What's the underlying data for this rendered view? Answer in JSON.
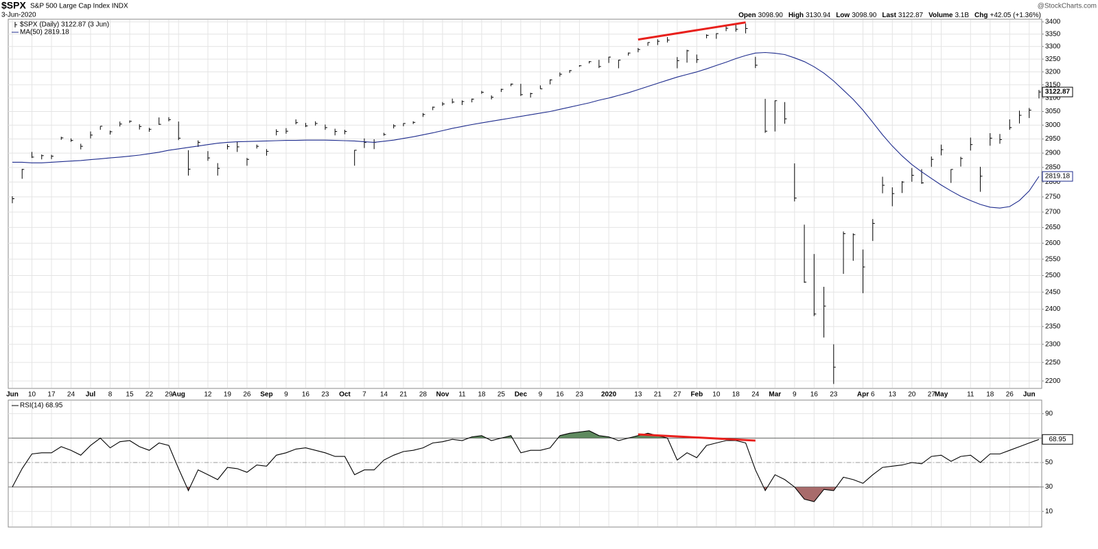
{
  "header": {
    "symbol": "$SPX",
    "name": "S&P 500 Large Cap Index INDX",
    "date": "3-Jun-2020",
    "source": "@StockCharts.com",
    "quote": [
      {
        "label": "Open",
        "value": "3098.90"
      },
      {
        "label": "High",
        "value": "3130.94"
      },
      {
        "label": "Low",
        "value": "3098.90"
      },
      {
        "label": "Last",
        "value": "3122.87"
      },
      {
        "label": "Volume",
        "value": "3.1B"
      },
      {
        "label": "Chg",
        "value": "+42.05 (+1.36%)"
      }
    ]
  },
  "chart_data": [
    {
      "type": "hlc",
      "log_scale": true,
      "grid": true,
      "last_value_tags": true,
      "ylim": [
        2182,
        3411
      ],
      "yticks": [
        2200,
        2250,
        2300,
        2350,
        2400,
        2450,
        2500,
        2550,
        2600,
        2650,
        2700,
        2750,
        2800,
        2850,
        2900,
        2950,
        3000,
        3050,
        3100,
        3150,
        3200,
        3250,
        3300,
        3350,
        3400
      ],
      "categories": [
        "Jun",
        null,
        "10",
        null,
        "17",
        null,
        "24",
        null,
        "Jul",
        null,
        "8",
        null,
        "15",
        null,
        "22",
        null,
        "29",
        "Aug",
        null,
        null,
        "12",
        null,
        "19",
        null,
        "26",
        null,
        "Sep",
        null,
        "9",
        null,
        "16",
        null,
        "23",
        null,
        "Oct",
        null,
        "7",
        null,
        "14",
        null,
        "21",
        null,
        "28",
        null,
        "Nov",
        null,
        "11",
        null,
        "18",
        null,
        "25",
        null,
        "Dec",
        null,
        "9",
        null,
        "16",
        null,
        "23",
        null,
        null,
        "2020",
        null,
        null,
        "13",
        null,
        "21",
        null,
        "27",
        null,
        "Feb",
        null,
        "10",
        null,
        "18",
        null,
        "24",
        null,
        "Mar",
        null,
        "9",
        null,
        "16",
        null,
        "23",
        null,
        null,
        "Apr",
        "6",
        null,
        "13",
        null,
        "20",
        null,
        "27",
        "May",
        null,
        null,
        "11",
        null,
        "18",
        null,
        "26",
        null,
        "Jun",
        null
      ],
      "series": [
        {
          "name": "$SPX (Daily) 3122.87 (3 Jun)",
          "color": "#000000",
          "high": [
            2752,
            2845,
            2904,
            2895,
            2894,
            2958,
            2952,
            2933,
            2977,
            2996,
            2980,
            3013,
            3017,
            3003,
            2990,
            3028,
            3029,
            3013,
            2910,
            2945,
            2907,
            2865,
            2931,
            2939,
            2883,
            2930,
            2914,
            2985,
            2989,
            3021,
            3008,
            3014,
            3002,
            2987,
            2983,
            2911,
            2952,
            2949,
            2972,
            3003,
            3007,
            3014,
            3044,
            3068,
            3085,
            3098,
            3091,
            3098,
            3127,
            3110,
            3135,
            3155,
            3154,
            3120,
            3148,
            3171,
            3198,
            3207,
            3226,
            3242,
            3247,
            3259,
            3247,
            3276,
            3294,
            3317,
            3329,
            3338,
            3258,
            3287,
            3268,
            3349,
            3353,
            3385,
            3394,
            3393,
            3259,
            3097,
            3091,
            3085,
            2864,
            2659,
            2566,
            2466,
            2300,
            2637,
            2631,
            2580,
            2677,
            2818,
            2782,
            2803,
            2848,
            2844,
            2888,
            2930,
            2844,
            2887,
            2955,
            2852,
            2971,
            2968,
            3021,
            3053,
            3063,
            3130.94
          ],
          "low": [
            2729,
            2811,
            2883,
            2878,
            2879,
            2947,
            2940,
            2913,
            2952,
            2983,
            2966,
            2995,
            3008,
            2984,
            2976,
            3001,
            3014,
            2946,
            2822,
            2922,
            2873,
            2822,
            2913,
            2904,
            2856,
            2916,
            2891,
            2963,
            2969,
            3003,
            2993,
            2998,
            2983,
            2963,
            2967,
            2856,
            2918,
            2914,
            2962,
            2988,
            2996,
            3004,
            3030,
            3055,
            3071,
            3080,
            3074,
            3084,
            3116,
            3095,
            3123,
            3145,
            3108,
            3102,
            3135,
            3152,
            3182,
            3196,
            3220,
            3233,
            3215,
            3235,
            3214,
            3264,
            3277,
            3303,
            3306,
            3316,
            3214,
            3236,
            3235,
            3333,
            3331,
            3362,
            3360,
            3353,
            3215,
            2972,
            2977,
            3005,
            2735,
            2478,
            2380,
            2319,
            2192,
            2505,
            2545,
            2447,
            2607,
            2762,
            2719,
            2763,
            2801,
            2794,
            2852,
            2892,
            2797,
            2853,
            2909,
            2767,
            2926,
            2933,
            2983,
            3006,
            3026,
            3098.9
          ],
          "close": [
            2744,
            2843,
            2886,
            2891,
            2889,
            2954,
            2945,
            2924,
            2964,
            2996,
            2976,
            3004,
            3014,
            2995,
            2985,
            3003,
            3020,
            2953,
            2844,
            2938,
            2883,
            2847,
            2923,
            2922,
            2878,
            2924,
            2906,
            2977,
            2978,
            3009,
            2997,
            3006,
            2991,
            2977,
            2977,
            2910,
            2938,
            2938,
            2966,
            2997,
            3006,
            3010,
            3039,
            3066,
            3078,
            3085,
            3087,
            3096,
            3122,
            3103,
            3133,
            3153,
            3113,
            3117,
            3135,
            3169,
            3191,
            3205,
            3224,
            3240,
            3221,
            3258,
            3246,
            3274,
            3288,
            3316,
            3321,
            3326,
            3244,
            3283,
            3248,
            3345,
            3352,
            3374,
            3370,
            3373,
            3226,
            2978,
            3090,
            3023,
            2746,
            2480,
            2386,
            2409,
            2237,
            2630,
            2627,
            2526,
            2663,
            2789,
            2761,
            2800,
            2823,
            2797,
            2878,
            2912,
            2843,
            2881,
            2930,
            2820,
            2953,
            2948,
            2991,
            3036,
            3055,
            3122.87
          ]
        },
        {
          "name": "MA(50) 2819.18",
          "color": "#1c2a8c",
          "values": [
            2868,
            2868,
            2866,
            2866,
            2868,
            2870,
            2872,
            2874,
            2877,
            2880,
            2883,
            2886,
            2889,
            2893,
            2898,
            2903,
            2910,
            2915,
            2920,
            2925,
            2930,
            2935,
            2938,
            2940,
            2941,
            2942,
            2943,
            2944,
            2945,
            2945,
            2946,
            2946,
            2946,
            2945,
            2944,
            2943,
            2940,
            2938,
            2942,
            2946,
            2952,
            2958,
            2965,
            2972,
            2980,
            2988,
            2995,
            3002,
            3008,
            3014,
            3020,
            3026,
            3032,
            3038,
            3044,
            3050,
            3058,
            3066,
            3074,
            3082,
            3092,
            3100,
            3110,
            3120,
            3132,
            3144,
            3156,
            3168,
            3180,
            3190,
            3200,
            3212,
            3225,
            3238,
            3252,
            3264,
            3274,
            3276,
            3273,
            3268,
            3255,
            3240,
            3220,
            3195,
            3165,
            3130,
            3095,
            3055,
            3010,
            2965,
            2925,
            2890,
            2860,
            2835,
            2812,
            2790,
            2770,
            2752,
            2738,
            2725,
            2716,
            2713,
            2718,
            2738,
            2770,
            2819.18
          ]
        }
      ],
      "trendlines": [
        {
          "color": "#e8201c",
          "from": [
            64,
            3328
          ],
          "to": [
            75,
            3398
          ]
        }
      ]
    },
    {
      "type": "line",
      "grid": true,
      "last_value_tags": true,
      "ylim": [
        0,
        100
      ],
      "yticks": [
        10,
        30,
        50,
        70,
        90
      ],
      "overbought": 70,
      "oversold": 30,
      "midline": 50,
      "overbought_color": "#5f8a5f",
      "oversold_color": "#a86b6b",
      "series": [
        {
          "name": "RSI(14) 68.95",
          "color": "#000000",
          "values": [
            30,
            45,
            57,
            58,
            58,
            63,
            60,
            56,
            64,
            70,
            62,
            67,
            68,
            63,
            60,
            66,
            64,
            45,
            27,
            44,
            40,
            36,
            46,
            45,
            42,
            48,
            47,
            56,
            58,
            61,
            62,
            60,
            58,
            55,
            55,
            40,
            44,
            44,
            52,
            56,
            59,
            60,
            62,
            66,
            67,
            69,
            68,
            71,
            72,
            68,
            70,
            72,
            58,
            60,
            60,
            62,
            72,
            74,
            75,
            76,
            72,
            71,
            68,
            70,
            72,
            74,
            72,
            70,
            52,
            58,
            54,
            64,
            66,
            68,
            68,
            66,
            44,
            27,
            40,
            36,
            30,
            20,
            18,
            28,
            27,
            38,
            36,
            33,
            40,
            46,
            47,
            48,
            50,
            49,
            55,
            56,
            51,
            55,
            56,
            50,
            57,
            57,
            60,
            63,
            66,
            68.95
          ]
        }
      ],
      "trendlines": [
        {
          "color": "#e8201c",
          "from": [
            64,
            73
          ],
          "to": [
            76,
            68
          ]
        }
      ]
    }
  ]
}
